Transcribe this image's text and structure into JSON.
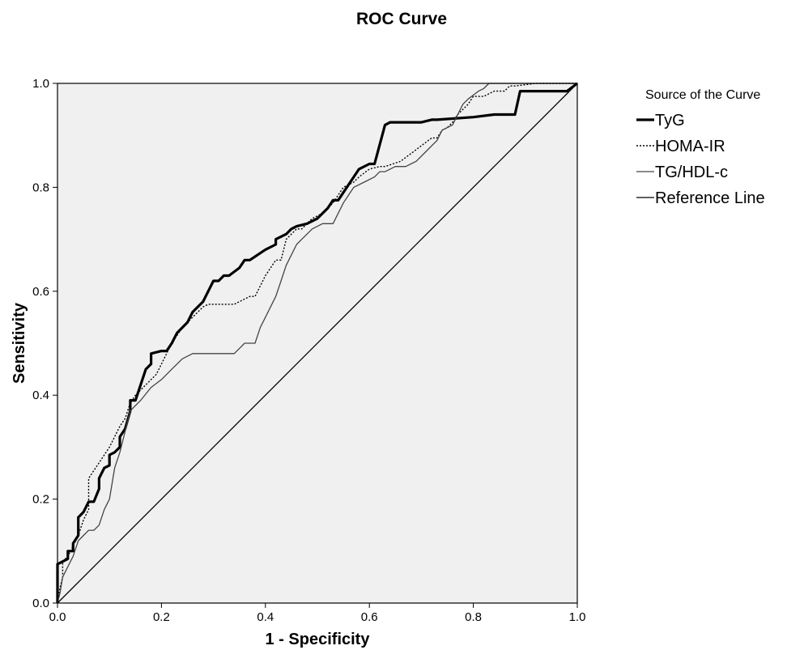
{
  "chart_data": {
    "type": "line",
    "title": "ROC Curve",
    "xlabel": "1 - Specificity",
    "ylabel": "Sensitivity",
    "xlim": [
      0,
      1
    ],
    "ylim": [
      0,
      1
    ],
    "x_ticks": [
      "0.0",
      "0.2",
      "0.4",
      "0.6",
      "0.8",
      "1.0"
    ],
    "y_ticks": [
      "0.0",
      "0.2",
      "0.4",
      "0.6",
      "0.8",
      "1.0"
    ],
    "grid": false,
    "plot_background": "#f0f0f0",
    "legend": {
      "title": "Source of the Curve",
      "position": "right"
    },
    "series": [
      {
        "name": "TyG",
        "style": "thick-solid",
        "color": "#000000",
        "x": [
          0,
          0,
          0.02,
          0.02,
          0.03,
          0.03,
          0.04,
          0.04,
          0.05,
          0.06,
          0.07,
          0.08,
          0.08,
          0.09,
          0.1,
          0.1,
          0.11,
          0.12,
          0.12,
          0.13,
          0.14,
          0.14,
          0.15,
          0.16,
          0.17,
          0.18,
          0.18,
          0.2,
          0.21,
          0.22,
          0.23,
          0.24,
          0.25,
          0.26,
          0.28,
          0.29,
          0.3,
          0.31,
          0.32,
          0.33,
          0.35,
          0.36,
          0.37,
          0.4,
          0.42,
          0.42,
          0.44,
          0.45,
          0.46,
          0.48,
          0.5,
          0.52,
          0.53,
          0.54,
          0.56,
          0.57,
          0.58,
          0.6,
          0.61,
          0.63,
          0.64,
          0.65,
          0.7,
          0.72,
          0.73,
          0.8,
          0.84,
          0.88,
          0.89,
          0.9,
          0.95,
          0.98,
          1.0
        ],
        "y": [
          0,
          0.075,
          0.085,
          0.1,
          0.1,
          0.115,
          0.13,
          0.165,
          0.175,
          0.195,
          0.195,
          0.22,
          0.24,
          0.26,
          0.265,
          0.285,
          0.29,
          0.3,
          0.32,
          0.335,
          0.37,
          0.39,
          0.39,
          0.42,
          0.45,
          0.46,
          0.48,
          0.485,
          0.485,
          0.5,
          0.52,
          0.53,
          0.54,
          0.56,
          0.58,
          0.6,
          0.62,
          0.62,
          0.63,
          0.63,
          0.645,
          0.66,
          0.66,
          0.68,
          0.69,
          0.7,
          0.71,
          0.72,
          0.725,
          0.73,
          0.74,
          0.76,
          0.775,
          0.775,
          0.805,
          0.82,
          0.835,
          0.845,
          0.845,
          0.92,
          0.925,
          0.925,
          0.925,
          0.93,
          0.93,
          0.935,
          0.94,
          0.94,
          0.985,
          0.985,
          0.985,
          0.985,
          1.0
        ]
      },
      {
        "name": "HOMA-IR",
        "style": "dotted",
        "color": "#000000",
        "x": [
          0,
          0.005,
          0.01,
          0.01,
          0.02,
          0.03,
          0.04,
          0.05,
          0.06,
          0.06,
          0.07,
          0.08,
          0.09,
          0.1,
          0.11,
          0.12,
          0.13,
          0.14,
          0.15,
          0.16,
          0.18,
          0.19,
          0.2,
          0.21,
          0.22,
          0.24,
          0.26,
          0.28,
          0.29,
          0.31,
          0.34,
          0.37,
          0.38,
          0.4,
          0.42,
          0.43,
          0.44,
          0.46,
          0.47,
          0.49,
          0.51,
          0.53,
          0.55,
          0.57,
          0.58,
          0.6,
          0.62,
          0.63,
          0.66,
          0.68,
          0.7,
          0.72,
          0.73,
          0.74,
          0.75,
          0.76,
          0.77,
          0.78,
          0.79,
          0.8,
          0.82,
          0.84,
          0.86,
          0.87,
          0.88,
          0.92,
          0.97,
          1.0
        ],
        "y": [
          0,
          0.03,
          0.05,
          0.08,
          0.09,
          0.11,
          0.13,
          0.16,
          0.18,
          0.24,
          0.255,
          0.27,
          0.285,
          0.3,
          0.32,
          0.34,
          0.355,
          0.385,
          0.4,
          0.41,
          0.43,
          0.44,
          0.46,
          0.48,
          0.5,
          0.53,
          0.55,
          0.57,
          0.575,
          0.575,
          0.575,
          0.59,
          0.59,
          0.63,
          0.66,
          0.66,
          0.7,
          0.72,
          0.72,
          0.74,
          0.75,
          0.77,
          0.8,
          0.81,
          0.82,
          0.835,
          0.84,
          0.84,
          0.85,
          0.865,
          0.88,
          0.895,
          0.895,
          0.91,
          0.915,
          0.925,
          0.94,
          0.95,
          0.96,
          0.975,
          0.975,
          0.985,
          0.985,
          0.995,
          0.995,
          1.0,
          1.0,
          1.0
        ]
      },
      {
        "name": "TG/HDL-c",
        "style": "thin-solid",
        "color": "#444444",
        "x": [
          0,
          0.005,
          0.01,
          0.02,
          0.03,
          0.04,
          0.05,
          0.06,
          0.07,
          0.08,
          0.09,
          0.1,
          0.11,
          0.12,
          0.13,
          0.14,
          0.16,
          0.18,
          0.2,
          0.22,
          0.24,
          0.26,
          0.28,
          0.3,
          0.32,
          0.34,
          0.35,
          0.36,
          0.38,
          0.39,
          0.4,
          0.41,
          0.42,
          0.43,
          0.44,
          0.46,
          0.47,
          0.49,
          0.51,
          0.53,
          0.55,
          0.57,
          0.59,
          0.61,
          0.62,
          0.63,
          0.65,
          0.67,
          0.69,
          0.71,
          0.73,
          0.74,
          0.76,
          0.77,
          0.78,
          0.79,
          0.81,
          0.82,
          0.83,
          0.85,
          0.87,
          1.0
        ],
        "y": [
          0,
          0.02,
          0.05,
          0.07,
          0.09,
          0.12,
          0.13,
          0.14,
          0.14,
          0.15,
          0.18,
          0.2,
          0.26,
          0.29,
          0.33,
          0.37,
          0.39,
          0.415,
          0.43,
          0.45,
          0.47,
          0.48,
          0.48,
          0.48,
          0.48,
          0.48,
          0.49,
          0.5,
          0.5,
          0.53,
          0.55,
          0.57,
          0.59,
          0.62,
          0.65,
          0.69,
          0.7,
          0.72,
          0.73,
          0.73,
          0.77,
          0.8,
          0.81,
          0.82,
          0.83,
          0.83,
          0.84,
          0.84,
          0.85,
          0.87,
          0.89,
          0.91,
          0.92,
          0.94,
          0.96,
          0.97,
          0.985,
          0.99,
          1.0,
          1.0,
          1.0,
          1.0
        ]
      },
      {
        "name": "Reference Line",
        "style": "thin-solid",
        "color": "#000000",
        "x": [
          0,
          1
        ],
        "y": [
          0,
          1
        ]
      }
    ]
  }
}
